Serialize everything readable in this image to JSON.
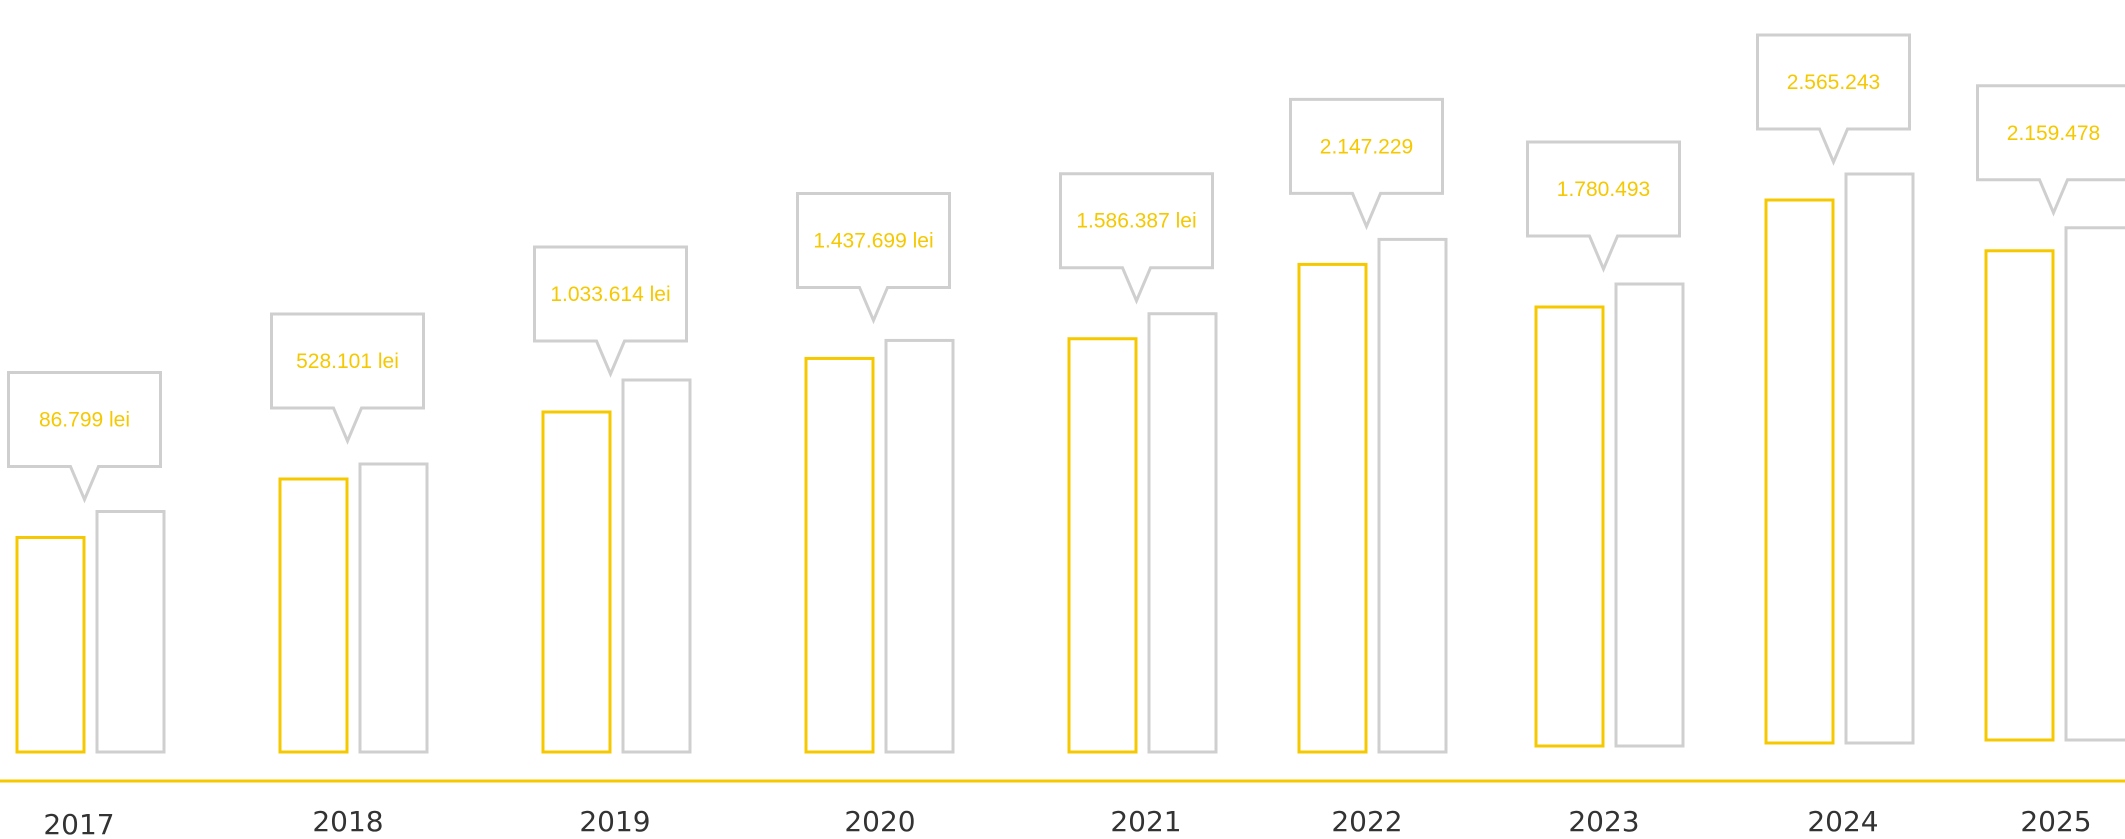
{
  "chart_data": {
    "type": "bar",
    "categories": [
      "2017",
      "2018",
      "2019",
      "2020",
      "2021",
      "2022",
      "2023",
      "2024",
      "2025"
    ],
    "series": [
      {
        "values": [
          86799,
          528101,
          1033614,
          1437699,
          1586387,
          2147229,
          1780493,
          2565243,
          2159478
        ]
      },
      {
        "values": [
          null,
          null,
          null,
          null,
          null,
          null,
          null,
          null,
          null
        ]
      }
    ],
    "data_labels": [
      "86.799 lei",
      "528.101 lei",
      "1.033.614 lei",
      "1.437.699 lei",
      "1.586.387 lei",
      "2.147.229",
      "1.780.493",
      "2.565.243",
      "2.159.478"
    ],
    "colors": {
      "primary": "#f5c800",
      "secondary": "#cfcfcf",
      "axis": "#f5c800",
      "label": "#333333"
    },
    "grid": false,
    "legend": "none"
  }
}
